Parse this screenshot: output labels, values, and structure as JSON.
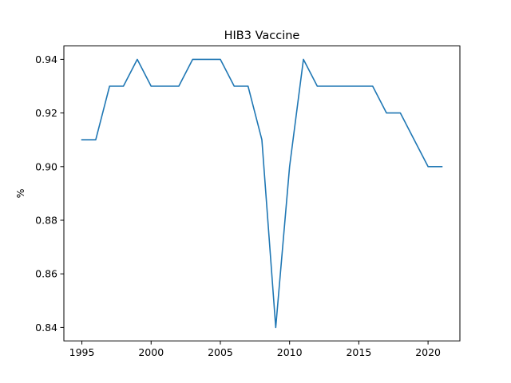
{
  "chart_data": {
    "type": "line",
    "title": "HIB3 Vaccine",
    "xlabel": "",
    "ylabel": "%",
    "x": [
      1995,
      1996,
      1997,
      1998,
      1999,
      2000,
      2001,
      2002,
      2003,
      2004,
      2005,
      2006,
      2007,
      2008,
      2009,
      2010,
      2011,
      2012,
      2013,
      2014,
      2015,
      2016,
      2017,
      2018,
      2019,
      2020,
      2021
    ],
    "series": [
      {
        "values": [
          0.91,
          0.91,
          0.93,
          0.93,
          0.94,
          0.93,
          0.93,
          0.93,
          0.94,
          0.94,
          0.94,
          0.93,
          0.93,
          0.91,
          0.84,
          0.9,
          0.94,
          0.93,
          0.93,
          0.93,
          0.93,
          0.93,
          0.92,
          0.92,
          0.91,
          0.9,
          0.9
        ],
        "color": "#1f77b4"
      }
    ],
    "xticks": [
      1995,
      2000,
      2005,
      2010,
      2015,
      2020
    ],
    "xtick_labels": [
      "1995",
      "2000",
      "2005",
      "2010",
      "2015",
      "2020"
    ],
    "yticks": [
      0.84,
      0.86,
      0.88,
      0.9,
      0.92,
      0.94
    ],
    "ytick_labels": [
      "0.84",
      "0.86",
      "0.88",
      "0.90",
      "0.92",
      "0.94"
    ],
    "xlim": [
      1993.7,
      2022.3
    ],
    "ylim": [
      0.835,
      0.945
    ],
    "grid": false,
    "legend": "none"
  }
}
